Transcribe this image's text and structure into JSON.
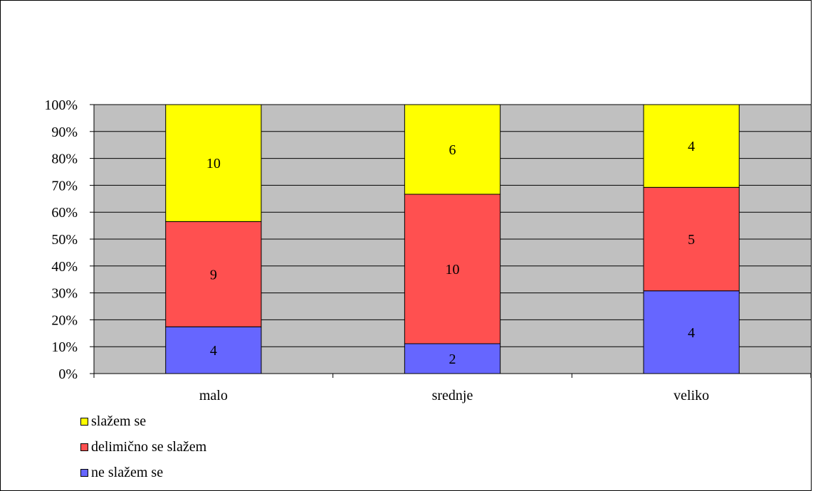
{
  "chart_data": {
    "type": "bar",
    "stacked": "percent",
    "categories": [
      "malo",
      "srednje",
      "veliko"
    ],
    "series": [
      {
        "name": "ne slažem se",
        "values": [
          4,
          2,
          4
        ],
        "color": "#6666ff"
      },
      {
        "name": "delimično se slažem",
        "values": [
          9,
          10,
          5
        ],
        "color": "#ff5050"
      },
      {
        "name": "slažem se",
        "values": [
          10,
          6,
          4
        ],
        "color": "#ffff00"
      }
    ],
    "yticks": [
      "0%",
      "10%",
      "20%",
      "30%",
      "40%",
      "50%",
      "60%",
      "70%",
      "80%",
      "90%",
      "100%"
    ],
    "ylim": [
      0,
      100
    ],
    "grid": true,
    "plot_background": "#c0c0c0",
    "legend_position": "bottom-left",
    "legend_order": [
      "slažem se",
      "delimično se slažem",
      "ne slažem se"
    ]
  }
}
